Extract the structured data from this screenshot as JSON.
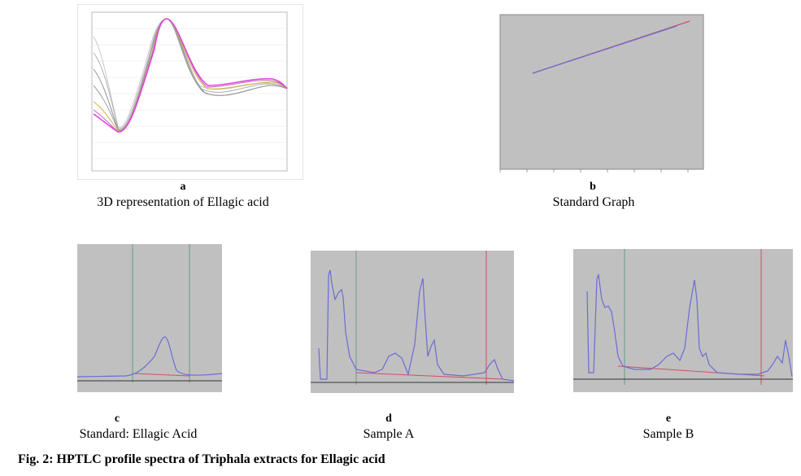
{
  "panels": {
    "a": {
      "letter": "a",
      "caption": "3D representation of Ellagic  acid"
    },
    "b": {
      "letter": "b",
      "caption": "Standard Graph"
    },
    "c": {
      "letter": "c",
      "caption": "Standard: Ellagic Acid"
    },
    "d": {
      "letter": "d",
      "caption": "Sample A"
    },
    "e": {
      "letter": "e",
      "caption": "Sample B"
    }
  },
  "figure_caption": "Fig. 2: HPTLC profile spectra of Triphala extracts for Ellagic acid",
  "colors": {
    "plot_bg_gray": "#c0c0c0",
    "trace_blue": "#6b6bd6",
    "baseline_red": "#d05060",
    "spectra": [
      "#e040e0",
      "#c060c0",
      "#d4b040",
      "#909090",
      "#a0a0a0",
      "#b0b0b0",
      "#c8c8c8",
      "#707070"
    ]
  }
}
